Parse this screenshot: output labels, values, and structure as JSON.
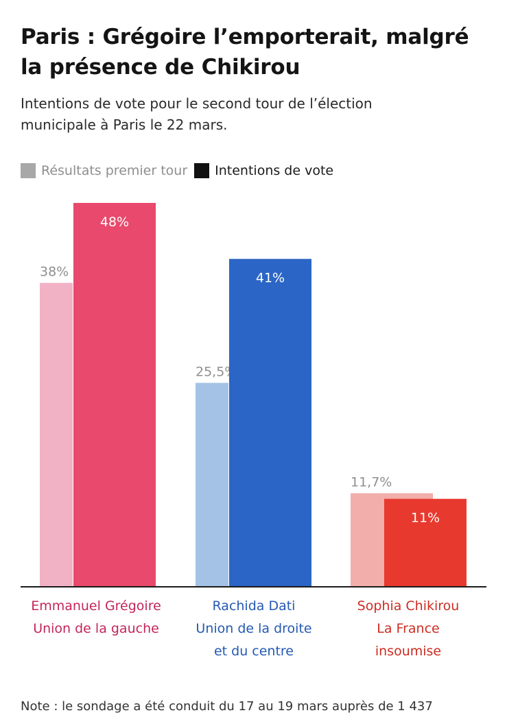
{
  "title_line1": "Paris : Grégoire l’emporterait, malgré",
  "title_line2": "la présence de Chikirou",
  "subtitle_line1": "Intentions de vote pour le second tour de l’élection",
  "subtitle_line2": "municipale à Paris le 22 mars.",
  "note": "Note : le sondage a été conduit du 17 au 19 mars auprès de 1 437",
  "chart_data": {
    "type": "bar",
    "title": "Paris : Grégoire l’emporterait, malgré la présence de Chikirou",
    "subtitle": "Intentions de vote pour le second tour de l’élection municipale à Paris le 22 mars.",
    "legend_position": "top-left",
    "grid": false,
    "ylim": [
      0,
      48
    ],
    "categories": [
      {
        "name": "Emmanuel Grégoire",
        "party_lines": [
          "Union de la gauche"
        ],
        "color": "#c4245a"
      },
      {
        "name": "Rachida Dati",
        "party_lines": [
          "Union de la droite",
          "et du centre"
        ],
        "color": "#2459b3"
      },
      {
        "name": "Sophia Chikirou",
        "party_lines": [
          "La France",
          "insoumise"
        ],
        "color": "#cc2d22"
      }
    ],
    "series": [
      {
        "name": "Résultats premier tour",
        "legend_color": "#a8a8a8",
        "values": [
          38,
          25.5,
          11.7
        ],
        "labels": [
          "38%",
          "25,5%",
          "11,7%"
        ],
        "colors": [
          "#f2b2c5",
          "#a4c2e6",
          "#f2aeaa"
        ]
      },
      {
        "name": "Intentions de vote",
        "legend_color": "#111111",
        "values": [
          48,
          41,
          11
        ],
        "labels": [
          "48%",
          "41%",
          "11%"
        ],
        "colors": [
          "#e8496c",
          "#2b65c5",
          "#e8392f"
        ]
      }
    ]
  }
}
